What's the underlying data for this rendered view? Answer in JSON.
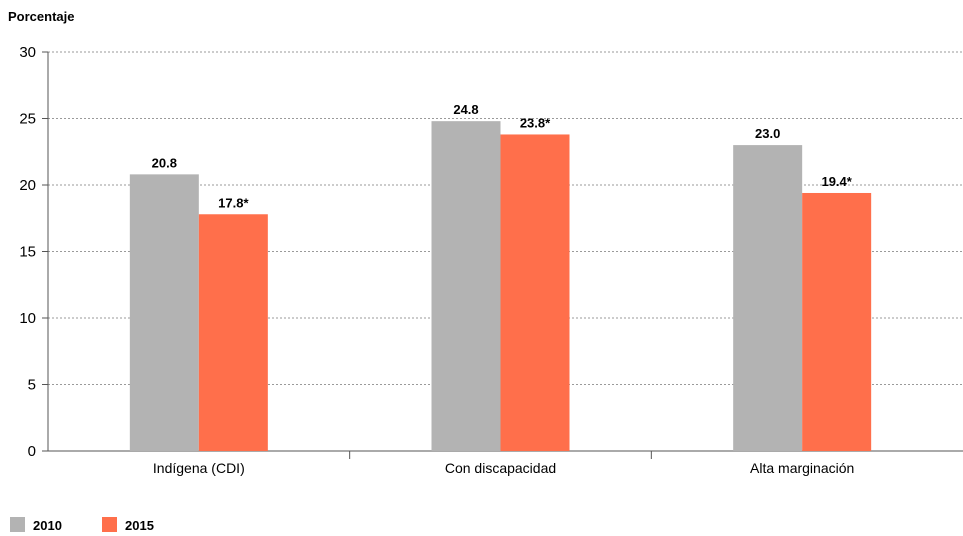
{
  "chart_data": {
    "type": "bar",
    "ylabel": "Porcentaje",
    "ylim": [
      0,
      30
    ],
    "yticks": [
      0,
      5,
      10,
      15,
      20,
      25,
      30
    ],
    "grid": true,
    "legend_position": "bottom-left",
    "categories": [
      "Indígena (CDI)",
      "Con discapacidad",
      "Alta marginación"
    ],
    "series": [
      {
        "name": "2010",
        "color": "#b3b3b3",
        "values": [
          20.8,
          24.8,
          23.0
        ],
        "labels": [
          "20.8",
          "24.8",
          "23.0"
        ]
      },
      {
        "name": "2015",
        "color": "#ff6f4b",
        "values": [
          17.8,
          23.8,
          19.4
        ],
        "labels": [
          "17.8*",
          "23.8*",
          "19.4*"
        ]
      }
    ]
  }
}
